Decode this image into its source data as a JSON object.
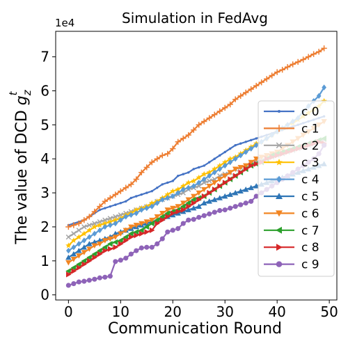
{
  "chart_data": {
    "type": "line",
    "title": "Simulation in FedAvg",
    "xlabel": "Communication Round",
    "ylabel": "The value of DCD g_z^t",
    "ylabel_main": "The value of DCD ",
    "ylabel_sym": "g",
    "ylabel_sub": "z",
    "ylabel_sup": "t",
    "y_offset_label": "1e4",
    "xlim": [
      -2.45,
      51.45
    ],
    "ylim": [
      -0.15,
      7.75
    ],
    "x_ticks": [
      0,
      10,
      20,
      30,
      40,
      50
    ],
    "y_ticks": [
      0,
      1,
      2,
      3,
      4,
      5,
      6,
      7
    ],
    "legend_position": "right",
    "series": [
      {
        "name": "c 0",
        "color": "#4472c4",
        "marker": "point",
        "values": [
          2.05,
          2.1,
          2.15,
          2.2,
          2.3,
          2.4,
          2.5,
          2.55,
          2.6,
          2.65,
          2.7,
          2.75,
          2.85,
          2.9,
          2.95,
          3.0,
          3.05,
          3.15,
          3.25,
          3.3,
          3.35,
          3.5,
          3.55,
          3.6,
          3.7,
          3.75,
          3.8,
          3.9,
          4.0,
          4.1,
          4.2,
          4.3,
          4.4,
          4.45,
          4.5,
          4.55,
          4.6,
          4.65,
          4.7,
          4.75,
          4.8,
          4.85,
          4.9,
          4.95,
          5.0,
          5.05,
          5.1,
          5.15,
          5.2,
          5.25
        ]
      },
      {
        "name": "c 1",
        "color": "#ed7d31",
        "marker": "plus",
        "values": [
          2.0,
          2.05,
          2.1,
          2.2,
          2.3,
          2.45,
          2.6,
          2.75,
          2.85,
          2.95,
          3.05,
          3.15,
          3.25,
          3.4,
          3.6,
          3.75,
          3.9,
          4.0,
          4.1,
          4.15,
          4.3,
          4.5,
          4.6,
          4.7,
          4.85,
          5.0,
          5.1,
          5.2,
          5.3,
          5.4,
          5.5,
          5.6,
          5.75,
          5.85,
          5.95,
          6.05,
          6.15,
          6.25,
          6.35,
          6.45,
          6.55,
          6.62,
          6.7,
          6.78,
          6.85,
          6.92,
          7.0,
          7.08,
          7.15,
          7.25
        ]
      },
      {
        "name": "c 2",
        "color": "#a5a5a5",
        "marker": "x",
        "values": [
          1.7,
          1.8,
          1.9,
          2.0,
          2.05,
          2.1,
          2.15,
          2.2,
          2.25,
          2.3,
          2.35,
          2.4,
          2.45,
          2.5,
          2.55,
          2.6,
          2.65,
          2.75,
          2.8,
          2.85,
          2.9,
          2.95,
          3.0,
          3.1,
          3.15,
          3.2,
          3.3,
          3.35,
          3.4,
          3.5,
          3.55,
          3.6,
          3.7,
          3.75,
          3.8,
          3.85,
          3.9,
          3.95,
          4.0,
          4.05,
          4.1,
          4.15,
          4.2,
          4.25,
          4.3,
          4.35,
          4.4,
          4.45,
          4.5,
          4.55
        ]
      },
      {
        "name": "c 3",
        "color": "#ffc000",
        "marker": "star",
        "values": [
          1.45,
          1.6,
          1.7,
          1.8,
          1.9,
          2.0,
          2.05,
          2.1,
          2.15,
          2.2,
          2.25,
          2.35,
          2.4,
          2.5,
          2.55,
          2.6,
          2.7,
          2.75,
          2.85,
          2.95,
          3.05,
          3.1,
          3.2,
          3.3,
          3.35,
          3.45,
          3.55,
          3.6,
          3.7,
          3.8,
          3.9,
          4.0,
          4.05,
          4.15,
          4.25,
          4.35,
          4.45,
          4.5,
          4.6,
          4.7,
          4.8,
          4.9,
          5.0,
          5.05,
          5.15,
          5.25,
          5.35,
          5.45,
          5.55,
          5.7
        ]
      },
      {
        "name": "c 4",
        "color": "#5b9bd5",
        "marker": "diamond",
        "values": [
          1.3,
          1.4,
          1.5,
          1.6,
          1.7,
          1.8,
          1.9,
          2.0,
          2.05,
          2.1,
          2.2,
          2.3,
          2.35,
          2.4,
          2.5,
          2.55,
          2.6,
          2.7,
          2.8,
          2.85,
          2.9,
          3.0,
          3.1,
          3.15,
          3.2,
          3.3,
          3.4,
          3.5,
          3.6,
          3.7,
          3.8,
          3.9,
          4.0,
          4.1,
          4.2,
          4.3,
          4.4,
          4.5,
          4.6,
          4.7,
          4.8,
          4.9,
          5.0,
          5.1,
          5.2,
          5.4,
          5.55,
          5.7,
          5.85,
          6.1
        ]
      },
      {
        "name": "c 5",
        "color": "#2e75b6",
        "marker": "triangle-up",
        "values": [
          1.1,
          1.2,
          1.3,
          1.4,
          1.5,
          1.55,
          1.6,
          1.65,
          1.7,
          1.8,
          1.85,
          1.9,
          1.95,
          2.0,
          2.05,
          2.1,
          2.15,
          2.2,
          2.25,
          2.3,
          2.35,
          2.4,
          2.45,
          2.5,
          2.55,
          2.6,
          2.7,
          2.75,
          2.8,
          2.85,
          2.9,
          2.95,
          3.0,
          3.05,
          3.1,
          3.15,
          3.2,
          3.25,
          3.3,
          3.35,
          3.4,
          3.45,
          3.5,
          3.55,
          3.6,
          3.65,
          3.7,
          3.75,
          3.8,
          3.85
        ]
      },
      {
        "name": "c 6",
        "color": "#f28522",
        "marker": "triangle-down",
        "values": [
          0.95,
          1.05,
          1.15,
          1.25,
          1.35,
          1.45,
          1.5,
          1.6,
          1.65,
          1.7,
          1.8,
          1.9,
          2.0,
          2.05,
          2.1,
          2.15,
          2.2,
          2.3,
          2.4,
          2.5,
          2.55,
          2.6,
          2.7,
          2.8,
          2.9,
          3.0,
          3.1,
          3.2,
          3.3,
          3.4,
          3.5,
          3.6,
          3.7,
          3.75,
          3.8,
          3.9,
          4.0,
          4.05,
          4.1,
          4.15,
          4.2,
          4.3,
          4.4,
          4.5,
          4.6,
          4.7,
          4.8,
          4.9,
          5.0,
          5.1
        ]
      },
      {
        "name": "c 7",
        "color": "#2ca02c",
        "marker": "triangle-left",
        "values": [
          0.7,
          0.8,
          0.9,
          1.0,
          1.1,
          1.2,
          1.3,
          1.4,
          1.5,
          1.55,
          1.6,
          1.7,
          1.8,
          1.85,
          1.9,
          2.0,
          2.1,
          2.2,
          2.3,
          2.4,
          2.45,
          2.5,
          2.6,
          2.7,
          2.8,
          2.85,
          2.9,
          3.0,
          3.1,
          3.2,
          3.3,
          3.4,
          3.5,
          3.6,
          3.7,
          3.8,
          3.85,
          3.9,
          4.0,
          4.1,
          4.15,
          4.2,
          4.25,
          4.3,
          4.35,
          4.4,
          4.45,
          4.5,
          4.55,
          4.6
        ]
      },
      {
        "name": "c 8",
        "color": "#d62728",
        "marker": "triangle-right",
        "values": [
          0.6,
          0.7,
          0.8,
          0.9,
          1.0,
          1.1,
          1.2,
          1.3,
          1.35,
          1.4,
          1.5,
          1.6,
          1.7,
          1.75,
          1.8,
          1.85,
          1.9,
          2.1,
          2.2,
          2.3,
          2.4,
          2.45,
          2.5,
          2.6,
          2.7,
          2.8,
          2.9,
          3.0,
          3.1,
          3.2,
          3.3,
          3.4,
          3.5,
          3.6,
          3.7,
          3.8,
          3.85,
          3.9,
          4.0,
          4.05,
          4.1,
          4.15,
          4.2,
          4.25,
          4.3,
          4.35,
          4.4,
          4.45,
          4.5,
          4.45
        ]
      },
      {
        "name": "c 9",
        "color": "#8e63b8",
        "marker": "circle",
        "values": [
          0.28,
          0.33,
          0.38,
          0.4,
          0.43,
          0.46,
          0.5,
          0.52,
          0.55,
          0.98,
          1.02,
          1.08,
          1.2,
          1.3,
          1.38,
          1.4,
          1.4,
          1.5,
          1.65,
          1.85,
          1.9,
          1.95,
          2.1,
          2.2,
          2.22,
          2.28,
          2.33,
          2.38,
          2.43,
          2.48,
          2.5,
          2.55,
          2.6,
          2.65,
          2.7,
          2.75,
          2.9,
          3.0,
          3.1,
          3.2,
          3.3,
          3.4,
          3.5,
          3.6,
          3.7,
          3.8,
          3.9,
          4.0,
          4.15,
          4.4
        ]
      }
    ]
  }
}
